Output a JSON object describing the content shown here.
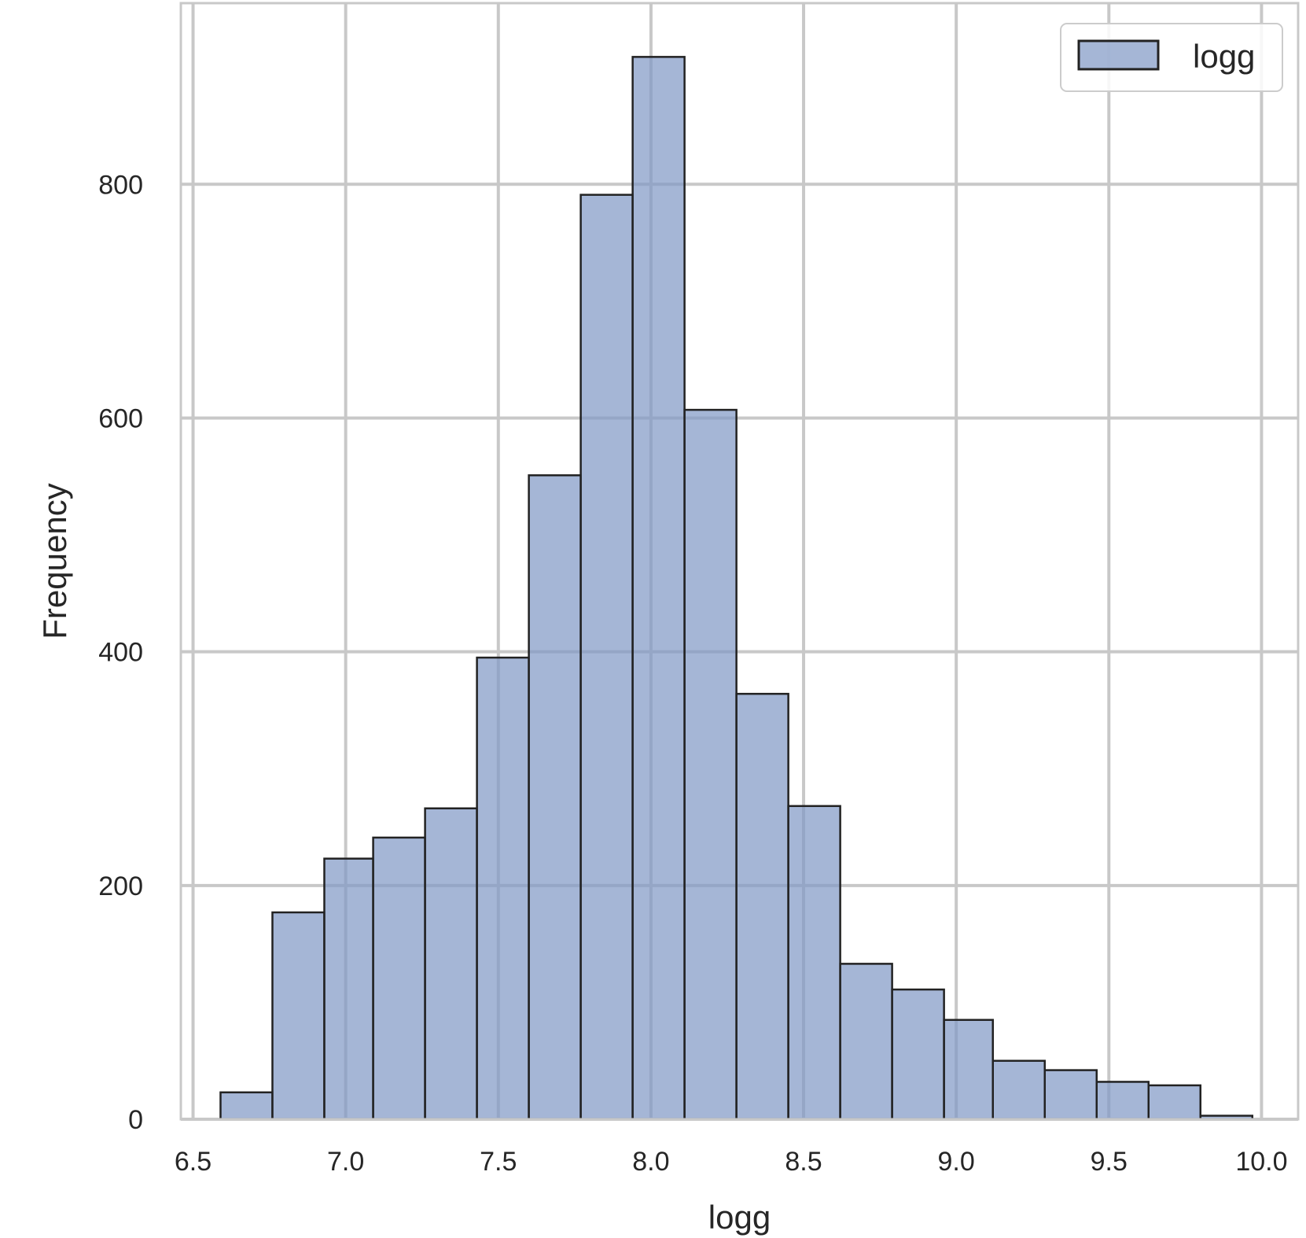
{
  "chart_data": {
    "type": "bar",
    "subtype": "histogram",
    "xlabel": "logg",
    "ylabel": "Frequency",
    "xlim": [
      6.46,
      10.12
    ],
    "ylim": [
      0,
      955
    ],
    "xticks": [
      6.5,
      7.0,
      7.5,
      8.0,
      8.5,
      9.0,
      9.5,
      10.0
    ],
    "xtick_labels": [
      "6.5",
      "7.0",
      "7.5",
      "8.0",
      "8.5",
      "9.0",
      "9.5",
      "10.0"
    ],
    "yticks": [
      0,
      200,
      400,
      600,
      800
    ],
    "ytick_labels": [
      "0",
      "200",
      "400",
      "600",
      "800"
    ],
    "grid": true,
    "legend": {
      "position": "top-right",
      "entries": [
        "logg"
      ]
    },
    "bar_color": "#7f97c4",
    "edge_color": "#222222",
    "bins": [
      {
        "x0": 6.59,
        "x1": 6.76,
        "value": 23
      },
      {
        "x0": 6.76,
        "x1": 6.93,
        "value": 177
      },
      {
        "x0": 6.93,
        "x1": 7.09,
        "value": 223
      },
      {
        "x0": 7.09,
        "x1": 7.26,
        "value": 241
      },
      {
        "x0": 7.26,
        "x1": 7.43,
        "value": 266
      },
      {
        "x0": 7.43,
        "x1": 7.6,
        "value": 395
      },
      {
        "x0": 7.6,
        "x1": 7.77,
        "value": 551
      },
      {
        "x0": 7.77,
        "x1": 7.94,
        "value": 791
      },
      {
        "x0": 7.94,
        "x1": 8.11,
        "value": 909
      },
      {
        "x0": 8.11,
        "x1": 8.28,
        "value": 607
      },
      {
        "x0": 8.28,
        "x1": 8.45,
        "value": 364
      },
      {
        "x0": 8.45,
        "x1": 8.62,
        "value": 268
      },
      {
        "x0": 8.62,
        "x1": 8.79,
        "value": 133
      },
      {
        "x0": 8.79,
        "x1": 8.96,
        "value": 111
      },
      {
        "x0": 8.96,
        "x1": 9.12,
        "value": 85
      },
      {
        "x0": 9.12,
        "x1": 9.29,
        "value": 50
      },
      {
        "x0": 9.29,
        "x1": 9.46,
        "value": 42
      },
      {
        "x0": 9.46,
        "x1": 9.63,
        "value": 32
      },
      {
        "x0": 9.63,
        "x1": 9.8,
        "value": 29
      },
      {
        "x0": 9.8,
        "x1": 9.97,
        "value": 3
      }
    ]
  }
}
